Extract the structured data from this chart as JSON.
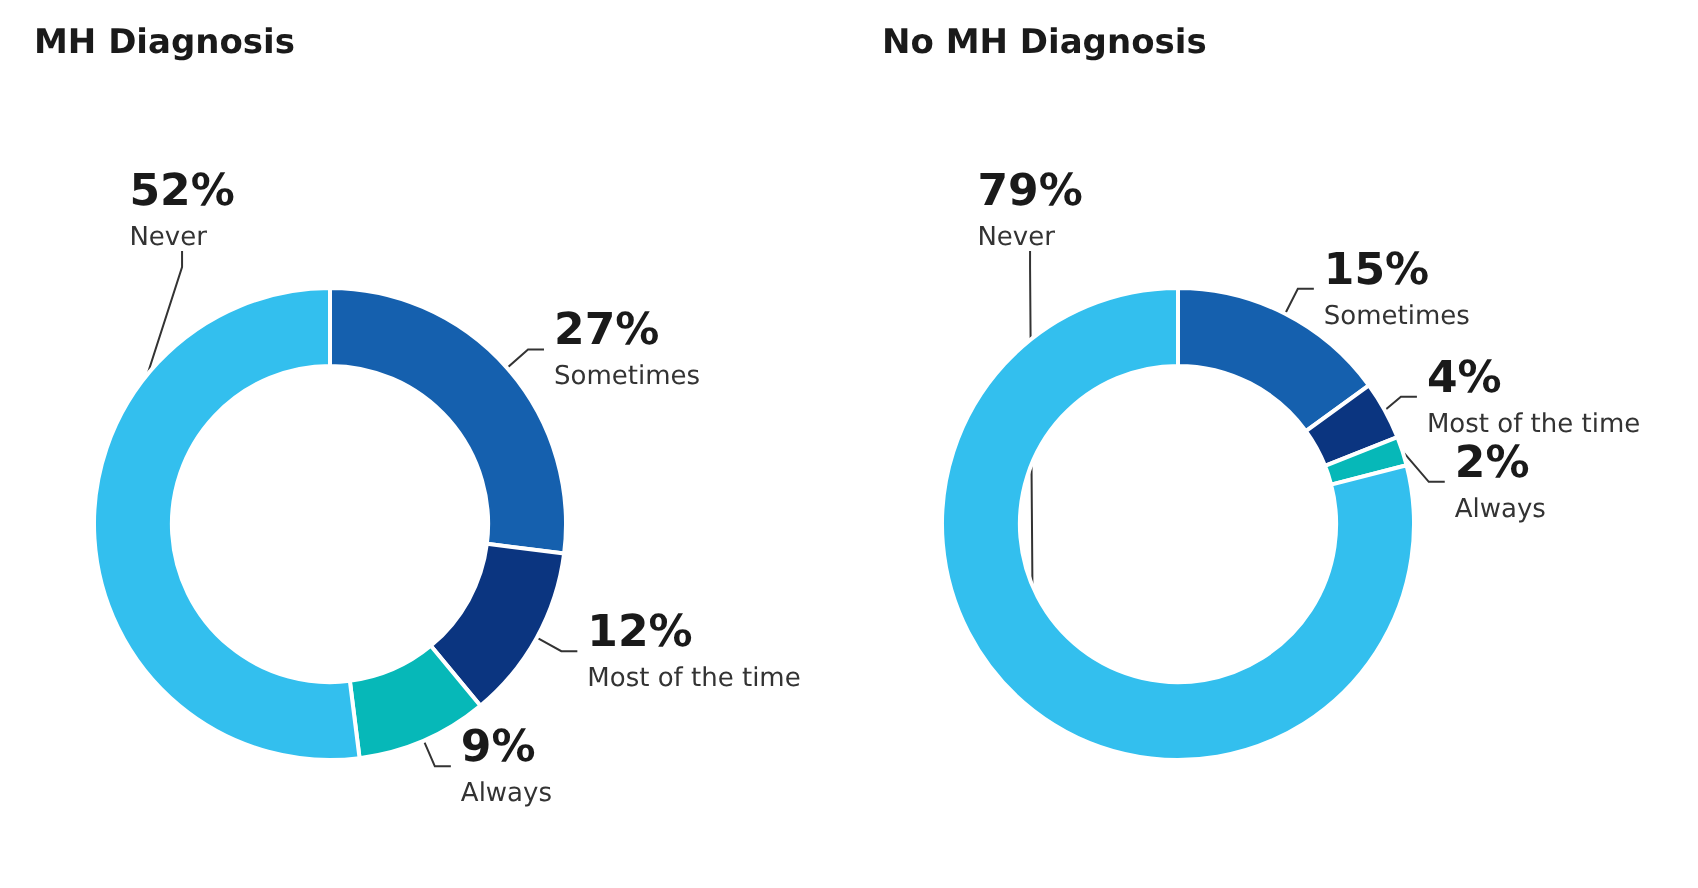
{
  "chart_data": [
    {
      "type": "donut",
      "title": "MH Diagnosis",
      "categories": [
        "Sometimes",
        "Most of the time",
        "Always",
        "Never"
      ],
      "values": [
        27,
        12,
        9,
        52
      ],
      "value_labels": [
        "27%",
        "12%",
        "9%",
        "52%"
      ],
      "colors": [
        "#1560ae",
        "#0b3580",
        "#06b8b8",
        "#33bfee"
      ],
      "legend": false
    },
    {
      "type": "donut",
      "title": "No MH Diagnosis",
      "categories": [
        "Sometimes",
        "Most of the time",
        "Always",
        "Never"
      ],
      "values": [
        15,
        4,
        2,
        79
      ],
      "value_labels": [
        "15%",
        "4%",
        "2%",
        "79%"
      ],
      "colors": [
        "#1560ae",
        "#0b3580",
        "#06b8b8",
        "#33bfee"
      ],
      "legend": false
    }
  ]
}
